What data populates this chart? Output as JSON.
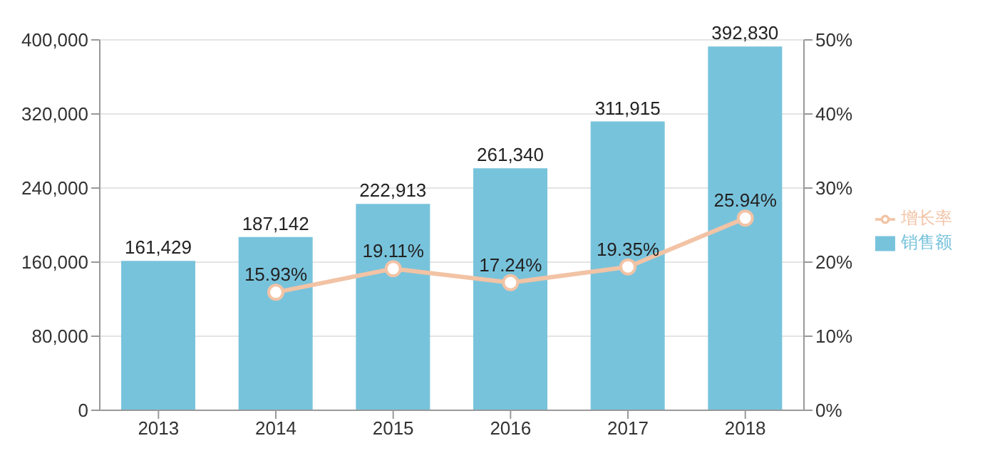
{
  "chart_data": {
    "type": "bar",
    "categories": [
      "2013",
      "2014",
      "2015",
      "2016",
      "2017",
      "2018"
    ],
    "series": [
      {
        "name": "销售额",
        "color": "#78c3dc",
        "values": [
          161429,
          187142,
          222913,
          261340,
          311915,
          392830
        ],
        "value_labels": [
          "161,429",
          "187,142",
          "222,913",
          "261,340",
          "311,915",
          "392,830"
        ]
      },
      {
        "name": "增长率",
        "type": "line",
        "axis": "y2",
        "color": "#f2c3a5",
        "values": [
          null,
          15.93,
          19.11,
          17.24,
          19.35,
          25.94
        ],
        "value_labels": [
          null,
          "15.93%",
          "19.11%",
          "17.24%",
          "19.35%",
          "25.94%"
        ]
      }
    ],
    "ylim": [
      0,
      400000
    ],
    "yticks": [
      {
        "value": 0,
        "label": "0"
      },
      {
        "value": 80000,
        "label": "80,000"
      },
      {
        "value": 160000,
        "label": "160,000"
      },
      {
        "value": 240000,
        "label": "240,000"
      },
      {
        "value": 320000,
        "label": "320,000"
      },
      {
        "value": 400000,
        "label": "400,000"
      }
    ],
    "y2lim": [
      0,
      50
    ],
    "y2ticks": [
      {
        "value": 0,
        "label": "0%"
      },
      {
        "value": 10,
        "label": "10%"
      },
      {
        "value": 20,
        "label": "20%"
      },
      {
        "value": 30,
        "label": "30%"
      },
      {
        "value": 40,
        "label": "40%"
      },
      {
        "value": 50,
        "label": "50%"
      }
    ],
    "grid": "y",
    "legend": "right",
    "marker": "circle"
  }
}
